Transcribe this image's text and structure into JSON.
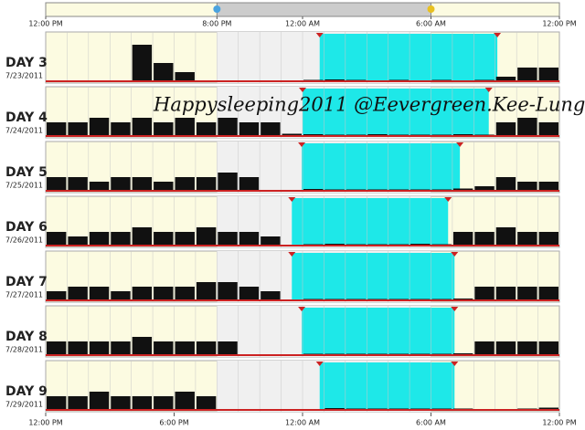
{
  "chart_data": {
    "type": "sleep-activity",
    "xlim": [
      0,
      24
    ],
    "ylim": [
      0,
      10
    ],
    "top_ticks": [
      {
        "value": 0,
        "label": "12:00 PM"
      },
      {
        "value": 8,
        "label": "8:00 PM"
      },
      {
        "value": 12,
        "label": "12:00 AM"
      },
      {
        "value": 18,
        "label": "6:00 AM"
      },
      {
        "value": 24,
        "label": "12:00 PM"
      }
    ],
    "bottom_ticks": [
      {
        "value": 0,
        "label": "12:00 PM"
      },
      {
        "value": 6,
        "label": "6:00 PM"
      },
      {
        "value": 12,
        "label": "12:00 AM"
      },
      {
        "value": 18,
        "label": "6:00 AM"
      },
      {
        "value": 24,
        "label": "12:00 PM"
      }
    ],
    "night": [
      8,
      18
    ],
    "watermark": "Happysleeping2011 @Eevergreen.Kee-Lung",
    "colors": {
      "day": "#fcfbe1",
      "night": "#f0f0f0",
      "sleep": "#1ee8e8",
      "activity": "#111111",
      "marker": "#cc2222"
    },
    "days": [
      {
        "name": "DAY 3",
        "date": "7/23/2011",
        "sleep": [
          12.8,
          21.1
        ],
        "activity": [
          null,
          null,
          null,
          null,
          8,
          4,
          2,
          null,
          0,
          0,
          0,
          0,
          0.3,
          0.4,
          0.3,
          0.2,
          0.3,
          0.2,
          0.3,
          0.2,
          0.3,
          1,
          3,
          3
        ]
      },
      {
        "name": "DAY 4",
        "date": "7/24/2011",
        "sleep": [
          12,
          20.7
        ],
        "activity": [
          3,
          3,
          4,
          3,
          4,
          3,
          4,
          3,
          4,
          3,
          3,
          0.5,
          0.4,
          0.3,
          0.3,
          0.4,
          0.3,
          0.3,
          0.3,
          0.4,
          0.3,
          3,
          4,
          3
        ]
      },
      {
        "name": "DAY 5",
        "date": "7/25/2011",
        "sleep": [
          11.96,
          19.35
        ],
        "activity": [
          3,
          3,
          2,
          3,
          3,
          2,
          3,
          3,
          4,
          3,
          0,
          0,
          0.4,
          0.3,
          0.3,
          0.3,
          0.3,
          0.3,
          0.3,
          0.5,
          1,
          3,
          2,
          2
        ]
      },
      {
        "name": "DAY 6",
        "date": "7/26/2011",
        "sleep": [
          11.5,
          18.8
        ],
        "activity": [
          3,
          2,
          3,
          3,
          4,
          3,
          3,
          4,
          3,
          3,
          2,
          0,
          0.3,
          0.4,
          0.3,
          0.3,
          0.3,
          0.4,
          0.3,
          3,
          3,
          4,
          3,
          3
        ]
      },
      {
        "name": "DAY 7",
        "date": "7/27/2011",
        "sleep": [
          11.5,
          19.1
        ],
        "activity": [
          2,
          3,
          3,
          2,
          3,
          3,
          3,
          4,
          4,
          3,
          2,
          0,
          0.3,
          0.3,
          0.3,
          0.3,
          0.3,
          0.3,
          0.3,
          0.4,
          3,
          3,
          3,
          3
        ]
      },
      {
        "name": "DAY 8",
        "date": "7/28/2011",
        "sleep": [
          11.96,
          19.1
        ],
        "activity": [
          3,
          3,
          3,
          3,
          4,
          3,
          3,
          3,
          3,
          0,
          0,
          0,
          0.3,
          0.3,
          0.3,
          0.3,
          0.3,
          0.3,
          0.3,
          0.4,
          3,
          3,
          3,
          3
        ]
      },
      {
        "name": "DAY 9",
        "date": "7/29/2011",
        "sleep": [
          12.8,
          19.1
        ],
        "activity": [
          3,
          3,
          4,
          3,
          3,
          3,
          4,
          3,
          0,
          0,
          0,
          0,
          0,
          0.4,
          0.3,
          0.3,
          0.3,
          0.3,
          0.3,
          0.3,
          0.2,
          0.2,
          0.3,
          0.5
        ]
      }
    ]
  }
}
